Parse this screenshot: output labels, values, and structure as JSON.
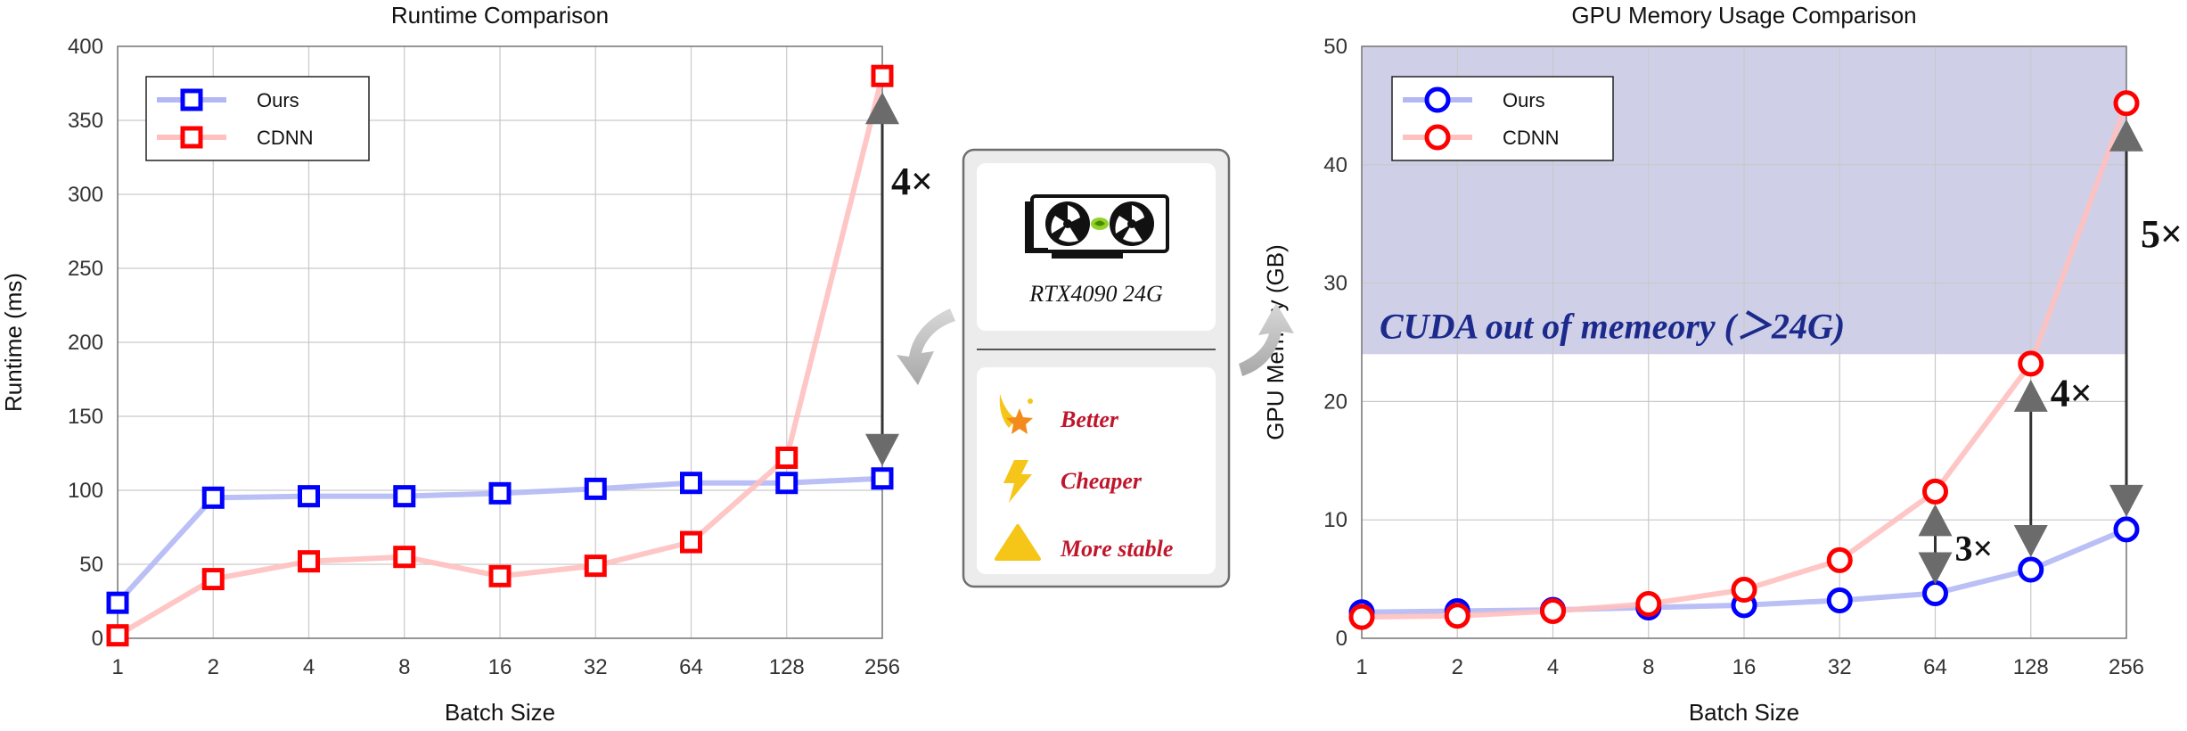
{
  "chart_data": [
    {
      "type": "line",
      "title": "Runtime Comparison",
      "xlabel": "Batch Size",
      "ylabel": "Runtime (ms)",
      "x": [
        "1",
        "2",
        "4",
        "8",
        "16",
        "32",
        "64",
        "128",
        "256"
      ],
      "ylim": [
        0,
        400
      ],
      "yticks": [
        0,
        50,
        100,
        150,
        200,
        250,
        300,
        350,
        400
      ],
      "grid": true,
      "legend_position": "top-left",
      "series": [
        {
          "name": "Ours",
          "color": "#0000ff",
          "line_color": "#b3b8f5",
          "marker": "square",
          "values": [
            24,
            95,
            96,
            96,
            98,
            101,
            105,
            105,
            108
          ]
        },
        {
          "name": "CDNN",
          "color": "#ff0000",
          "line_color": "#ffc0c0",
          "marker": "square",
          "values": [
            2,
            40,
            52,
            55,
            42,
            49,
            65,
            122,
            380
          ]
        }
      ],
      "annotations": [
        {
          "text": "4×",
          "x": "256",
          "from": 108,
          "to": 380
        }
      ]
    },
    {
      "type": "line",
      "title": "GPU Memory Usage Comparison",
      "xlabel": "Batch Size",
      "ylabel": "GPU Memory (GB)",
      "x": [
        "1",
        "2",
        "4",
        "8",
        "16",
        "32",
        "64",
        "128",
        "256"
      ],
      "ylim": [
        0,
        50
      ],
      "yticks": [
        0,
        10,
        20,
        30,
        40,
        50
      ],
      "grid": true,
      "legend_position": "top-left",
      "shaded_region": {
        "from": 24,
        "to": 50,
        "label": "CUDA out of memeory (＞24G)",
        "color": "#cfd0e8"
      },
      "series": [
        {
          "name": "Ours",
          "color": "#0000ff",
          "line_color": "#b3b8f5",
          "marker": "circle",
          "values": [
            2.2,
            2.3,
            2.4,
            2.6,
            2.8,
            3.2,
            3.8,
            5.8,
            9.2
          ]
        },
        {
          "name": "CDNN",
          "color": "#ff0000",
          "line_color": "#ffc0c0",
          "marker": "circle",
          "values": [
            1.8,
            1.9,
            2.3,
            2.9,
            4.1,
            6.6,
            12.4,
            23.2,
            45.2
          ]
        }
      ],
      "annotations": [
        {
          "text": "3×",
          "x": "64",
          "from": 3.8,
          "to": 12.4
        },
        {
          "text": "4×",
          "x": "128",
          "from": 5.8,
          "to": 23.2
        },
        {
          "text": "5×",
          "x": "256",
          "from": 9.2,
          "to": 45.2
        }
      ]
    }
  ],
  "device_card": {
    "gpu_label": "RTX4090 24G",
    "features": [
      {
        "label": "Better",
        "icon": "sparkle-star-icon",
        "color": "#f2b400"
      },
      {
        "label": "Cheaper",
        "icon": "lightning-bolt-icon",
        "color": "#f2b400"
      },
      {
        "label": "More stable",
        "icon": "triangle-icon",
        "color": "#f2b400"
      }
    ],
    "label_color": "#c0162c"
  }
}
